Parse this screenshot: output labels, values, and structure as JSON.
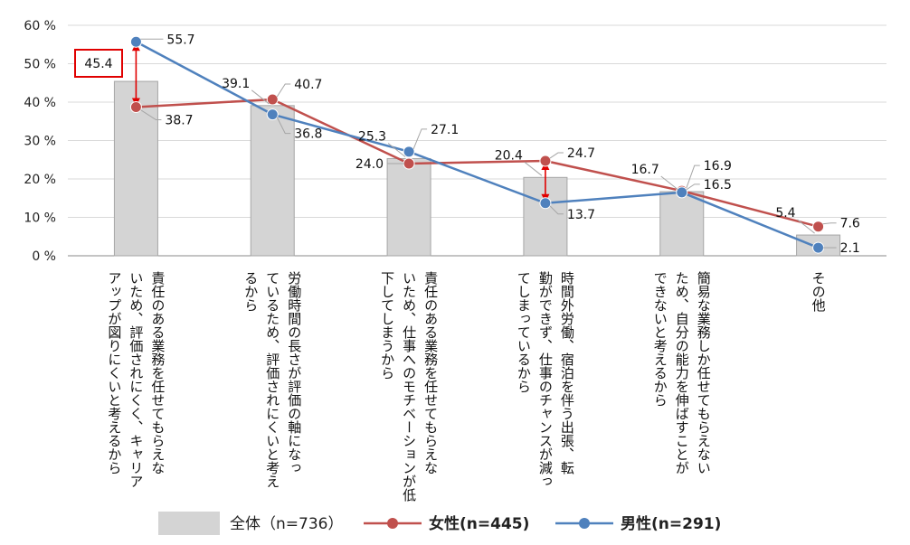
{
  "chart_data": {
    "type": "bar",
    "ylim": [
      0,
      60
    ],
    "y_ticks": [
      "0 %",
      "10 %",
      "20 %",
      "30 %",
      "40 %",
      "50 %",
      "60 %"
    ],
    "grid": true,
    "legend_placement": "bottom",
    "categories": [
      [
        "責任のある業務を任せてもらえな",
        "いため、評価されにくく、キャリア",
        "アップが図りにくいと考えるから"
      ],
      [
        "労働時間の長さが評価の軸になっ",
        "ているため、評価されにくいと考え",
        "るから"
      ],
      [
        "責任のある業務を任せてもらえな",
        "いため、仕事へのモチベーションが低",
        "下してしまうから"
      ],
      [
        "時間外労働、宿泊を伴う出張、転",
        "勤ができず、仕事のチャンスが減っ",
        "てしまっているから"
      ],
      [
        "簡易な業務しか任せてもらえない",
        "ため、自分の能力を伸ばすことが",
        "できないと考えるから"
      ],
      [
        "その他"
      ]
    ],
    "series": [
      {
        "name": "全体（n=736）",
        "kind": "bar",
        "color": "#d4d4d4",
        "values": [
          45.4,
          39.1,
          25.3,
          20.4,
          16.7,
          5.4
        ],
        "labels": [
          "45.4",
          "39.1",
          "25.3",
          "20.4",
          "16.7",
          "5.4"
        ]
      },
      {
        "name": "女性(n=445)",
        "kind": "line",
        "color": "#c0504d",
        "values": [
          38.7,
          40.7,
          24.0,
          24.7,
          16.9,
          7.6
        ],
        "labels": [
          "38.7",
          "40.7",
          "24.0",
          "24.7",
          "16.9",
          "7.6"
        ]
      },
      {
        "name": "男性(n=291)",
        "kind": "line",
        "color": "#4f81bd",
        "values": [
          55.7,
          36.8,
          27.1,
          13.7,
          16.5,
          2.1
        ],
        "labels": [
          "55.7",
          "36.8",
          "27.1",
          "13.7",
          "16.5",
          "2.1"
        ]
      }
    ],
    "highlighted_bar_label": "45.4",
    "gap_arrows_color": "#e00000"
  }
}
